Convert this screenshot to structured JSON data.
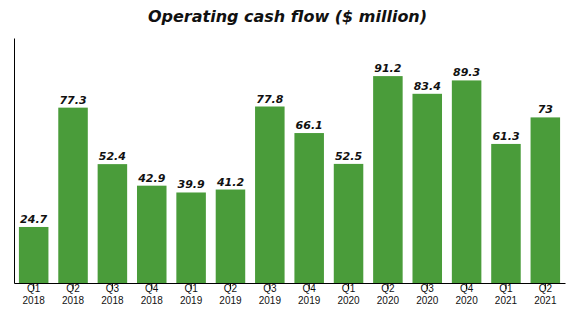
{
  "chart_data": {
    "type": "bar",
    "title": "Operating cash flow ($ million)",
    "categories": [
      "Q1\n2018",
      "Q2\n2018",
      "Q3\n2018",
      "Q4\n2018",
      "Q1\n2019",
      "Q2\n2019",
      "Q3\n2019",
      "Q4\n2019",
      "Q1\n2020",
      "Q2\n2020",
      "Q3\n2020",
      "Q4\n2020",
      "Q1\n2021",
      "Q2\n2021"
    ],
    "values": [
      24.7,
      77.3,
      52.4,
      42.9,
      39.9,
      41.2,
      77.8,
      66.1,
      52.5,
      91.2,
      83.4,
      89.3,
      61.3,
      73.0
    ],
    "color": "#4a9c3a",
    "ylim": [
      0,
      108
    ],
    "data_labels": true,
    "tick_labels": "x"
  }
}
